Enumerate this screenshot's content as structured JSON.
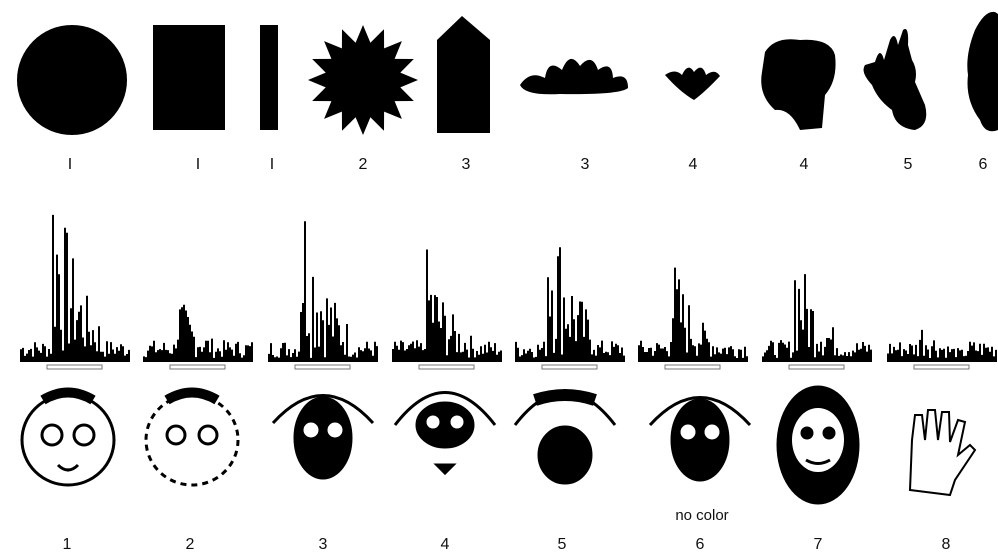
{
  "top_row": {
    "labels": [
      "I",
      "I",
      "I",
      "2",
      "3",
      "3",
      "4",
      "4",
      "5",
      "6"
    ]
  },
  "bottom_row": {
    "labels": [
      "1",
      "2",
      "3",
      "4",
      "5",
      "6",
      "7",
      "8"
    ],
    "annotation": "no color"
  }
}
